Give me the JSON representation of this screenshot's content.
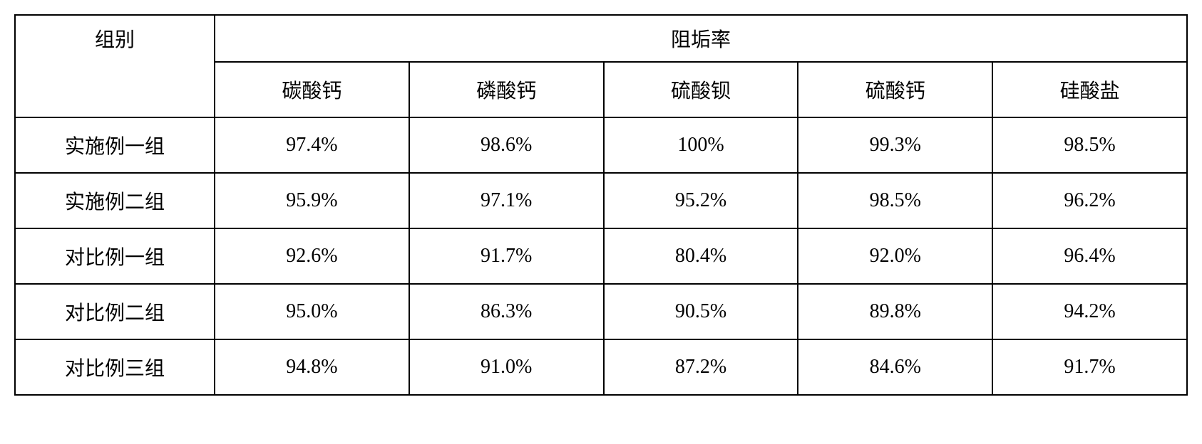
{
  "table": {
    "headers": {
      "group": "组别",
      "rate": "阻垢率",
      "subheaders": [
        "碳酸钙",
        "磷酸钙",
        "硫酸钡",
        "硫酸钙",
        "硅酸盐"
      ]
    },
    "rows": [
      {
        "label": "实施例一组",
        "values": [
          "97.4%",
          "98.6%",
          "100%",
          "99.3%",
          "98.5%"
        ]
      },
      {
        "label": "实施例二组",
        "values": [
          "95.9%",
          "97.1%",
          "95.2%",
          "98.5%",
          "96.2%"
        ]
      },
      {
        "label": "对比例一组",
        "values": [
          "92.6%",
          "91.7%",
          "80.4%",
          "92.0%",
          "96.4%"
        ]
      },
      {
        "label": "对比例二组",
        "values": [
          "95.0%",
          "86.3%",
          "90.5%",
          "89.8%",
          "94.2%"
        ]
      },
      {
        "label": "对比例三组",
        "values": [
          "94.8%",
          "91.0%",
          "87.2%",
          "84.6%",
          "91.7%"
        ]
      }
    ],
    "styling": {
      "border_color": "#000000",
      "border_width": 2,
      "background_color": "#ffffff",
      "text_color": "#000000",
      "font_size": 28,
      "font_family": "SimSun",
      "cell_padding": 18,
      "column_widths": {
        "group_column": 280,
        "data_columns": 273
      }
    }
  }
}
